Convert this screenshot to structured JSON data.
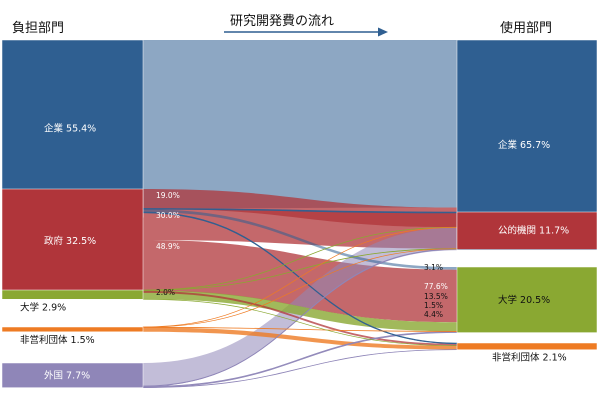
{
  "headers": {
    "source": "負担部門",
    "flow": "研究開発費の流れ",
    "target": "使用部門"
  },
  "colors": {
    "company": "#2f5f91",
    "government": "#b0353a",
    "university": "#8aa832",
    "nonprofit": "#ee7b23",
    "foreign": "#8f86b8"
  },
  "chart_data": {
    "type": "sankey",
    "sources": [
      {
        "key": "company",
        "name": "企業",
        "value": 55.4,
        "label": "企業 55.4%"
      },
      {
        "key": "government",
        "name": "政府",
        "value": 32.5,
        "label": "政府 32.5%"
      },
      {
        "key": "university",
        "name": "大学",
        "value": 2.9,
        "label": "大学 2.9%"
      },
      {
        "key": "nonprofit",
        "name": "非営利団体",
        "value": 1.5,
        "label": "非営利団体 1.5%"
      },
      {
        "key": "foreign",
        "name": "外国",
        "value": 7.7,
        "label": "外国 7.7%"
      }
    ],
    "targets": [
      {
        "key": "company",
        "name": "企業",
        "value": 65.7,
        "label": "企業 65.7%"
      },
      {
        "key": "public",
        "name": "公的機関",
        "value": 11.7,
        "label": "公的機関 11.7%"
      },
      {
        "key": "university",
        "name": "大学",
        "value": 20.5,
        "label": "大学 20.5%"
      },
      {
        "key": "nonprofit",
        "name": "非営利団体",
        "value": 2.1,
        "label": "非営利団体 2.1%"
      }
    ],
    "links": [
      {
        "from": "company",
        "to": "company",
        "share": 0.95
      },
      {
        "from": "company",
        "to": "public",
        "share": 0.005
      },
      {
        "from": "company",
        "to": "university",
        "share": 0.015
      },
      {
        "from": "company",
        "to": "nonprofit",
        "share": 0.005
      },
      {
        "from": "government",
        "to": "company",
        "share": 0.19
      },
      {
        "from": "government",
        "to": "public",
        "share": 0.3
      },
      {
        "from": "government",
        "to": "university",
        "share": 0.489
      },
      {
        "from": "government",
        "to": "nonprofit",
        "share": 0.02
      },
      {
        "from": "university",
        "to": "company",
        "share": 0.02
      },
      {
        "from": "university",
        "to": "public",
        "share": 0.02
      },
      {
        "from": "university",
        "to": "university",
        "share": 0.95
      },
      {
        "from": "university",
        "to": "nonprofit",
        "share": 0.01
      },
      {
        "from": "nonprofit",
        "to": "company",
        "share": 0.02
      },
      {
        "from": "nonprofit",
        "to": "public",
        "share": 0.02
      },
      {
        "from": "nonprofit",
        "to": "university",
        "share": 0.05
      },
      {
        "from": "nonprofit",
        "to": "nonprofit",
        "share": 0.91
      },
      {
        "from": "foreign",
        "to": "company",
        "share": 0.93
      },
      {
        "from": "foreign",
        "to": "public",
        "share": 0.02
      },
      {
        "from": "foreign",
        "to": "university",
        "share": 0.04
      },
      {
        "from": "foreign",
        "to": "nonprofit",
        "share": 0.01
      }
    ],
    "source_annotations": [
      {
        "source": "government",
        "link_to": "company",
        "text": "19.0%"
      },
      {
        "source": "government",
        "link_to": "public",
        "text": "30.0%"
      },
      {
        "source": "government",
        "link_to": "university",
        "text": "48.9%"
      },
      {
        "source": "government",
        "link_to": "nonprofit",
        "text": "2.0%"
      }
    ],
    "university_inflow_annotations": [
      "3.1%",
      "77.6%",
      "13.5%",
      "1.5%",
      "4.4%"
    ]
  }
}
